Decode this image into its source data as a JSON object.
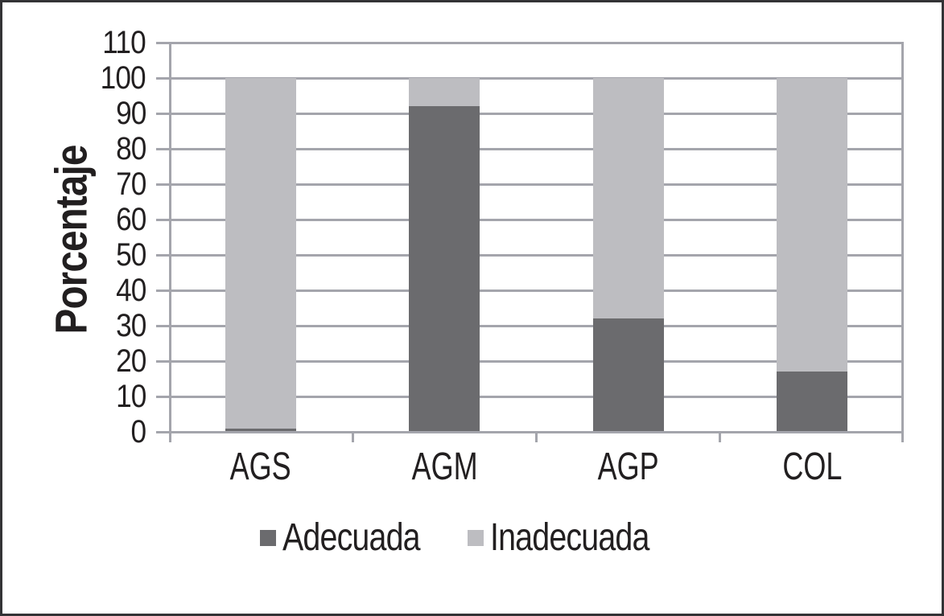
{
  "chart_data": {
    "type": "bar",
    "stacked": true,
    "categories": [
      "AGS",
      "AGM",
      "AGP",
      "COL"
    ],
    "series": [
      {
        "name": "Adecuada",
        "color": "#6b6b6e",
        "values": [
          1,
          92,
          32,
          17
        ]
      },
      {
        "name": "Inadecuada",
        "color": "#bdbdc1",
        "values": [
          99,
          8,
          68,
          83
        ]
      }
    ],
    "ylabel": "Porcentaje",
    "ylim": [
      0,
      110
    ],
    "ytick_step": 10,
    "ytick_labels": [
      "0",
      "10",
      "20",
      "30",
      "40",
      "50",
      "60",
      "70",
      "80",
      "90",
      "100",
      "110"
    ],
    "grid": "horizontal",
    "legend_position": "bottom"
  },
  "colors": {
    "gridline": "#a4a5ac",
    "axis": "#a4a5ac",
    "text": "#221f20",
    "frame": "#333336",
    "background": "#ffffff"
  }
}
